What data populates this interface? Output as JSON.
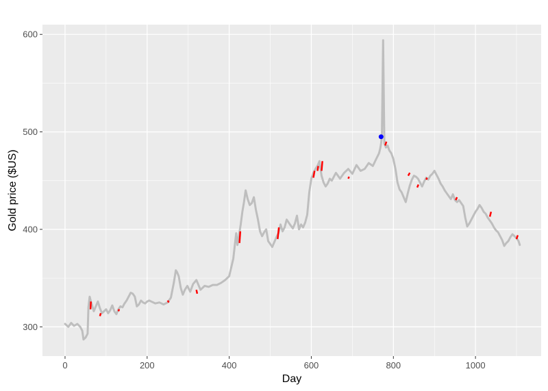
{
  "chart_data": {
    "type": "line",
    "title": "",
    "xlabel": "Day",
    "ylabel": "Gold price ($US)",
    "xlim": [
      -55,
      1160
    ],
    "ylim": [
      270,
      610
    ],
    "x_ticks": [
      0,
      200,
      400,
      600,
      800,
      1000
    ],
    "y_ticks": [
      300,
      400,
      500,
      600
    ],
    "grid": true,
    "legend": "none",
    "colors": {
      "panel": "#ebebeb",
      "grid": "#ffffff",
      "series": "#bebebe",
      "missing": "#ff0000",
      "highlight": "#0000ff"
    },
    "series": [
      {
        "x": [
          0,
          8,
          15,
          22,
          30,
          37,
          42,
          45,
          50,
          55,
          57,
          60,
          63,
          66,
          70,
          75,
          80,
          85,
          90,
          95,
          100,
          105,
          110,
          115,
          120,
          125,
          130,
          135,
          140,
          145,
          150,
          155,
          160,
          165,
          170,
          175,
          180,
          185,
          190,
          195,
          200,
          205,
          210,
          220,
          230,
          240,
          250,
          258,
          265,
          270,
          273,
          277,
          282,
          287,
          292,
          298,
          305,
          312,
          320,
          330,
          340,
          350,
          360,
          370,
          380,
          390,
          400,
          410,
          417,
          420,
          425,
          428,
          432,
          436,
          440,
          445,
          450,
          455,
          460,
          465,
          470,
          475,
          480,
          485,
          490,
          495,
          500,
          505,
          510,
          515,
          520,
          525,
          530,
          535,
          540,
          548,
          555,
          560,
          565,
          570,
          575,
          580,
          585,
          590,
          595,
          600,
          605,
          610,
          615,
          620,
          625,
          630,
          635,
          640,
          645,
          650,
          655,
          660,
          665,
          670,
          680,
          690,
          700,
          710,
          720,
          730,
          740,
          750,
          758,
          765,
          768,
          770,
          772,
          775,
          778,
          782,
          786,
          790,
          795,
          800,
          805,
          810,
          815,
          820,
          825,
          830,
          835,
          840,
          845,
          850,
          855,
          860,
          865,
          870,
          875,
          880,
          885,
          890,
          895,
          900,
          905,
          910,
          915,
          920,
          925,
          930,
          935,
          940,
          945,
          950,
          955,
          960,
          965,
          970,
          975,
          980,
          985,
          990,
          995,
          1000,
          1005,
          1010,
          1015,
          1020,
          1025,
          1030,
          1035,
          1040,
          1045,
          1050,
          1055,
          1060,
          1065,
          1070,
          1075,
          1080,
          1085,
          1090,
          1095,
          1100,
          1105,
          1108
        ],
        "y": [
          303,
          300,
          304,
          301,
          303,
          300,
          296,
          287,
          289,
          293,
          320,
          331,
          326,
          322,
          316,
          321,
          326,
          319,
          314,
          316,
          318,
          314,
          317,
          322,
          316,
          313,
          318,
          321,
          320,
          324,
          327,
          331,
          335,
          334,
          331,
          321,
          323,
          327,
          325,
          324,
          326,
          327,
          326,
          324,
          325,
          323,
          325,
          330,
          345,
          358,
          356,
          352,
          340,
          333,
          338,
          342,
          336,
          344,
          348,
          338,
          342,
          341,
          343,
          343,
          345,
          348,
          352,
          370,
          396,
          384,
          397,
          405,
          418,
          428,
          440,
          431,
          425,
          427,
          433,
          420,
          410,
          398,
          393,
          397,
          400,
          388,
          385,
          382,
          387,
          392,
          396,
          405,
          398,
          402,
          410,
          405,
          401,
          406,
          414,
          400,
          405,
          402,
          407,
          415,
          438,
          452,
          458,
          462,
          465,
          470,
          455,
          448,
          444,
          447,
          452,
          450,
          454,
          458,
          455,
          452,
          458,
          462,
          457,
          466,
          460,
          462,
          468,
          465,
          472,
          478,
          483,
          488,
          495,
          594,
          488,
          484,
          486,
          481,
          478,
          472,
          462,
          448,
          441,
          438,
          433,
          428,
          437,
          445,
          451,
          455,
          454,
          452,
          448,
          444,
          449,
          453,
          451,
          455,
          457,
          460,
          456,
          452,
          447,
          444,
          440,
          437,
          434,
          431,
          436,
          430,
          428,
          430,
          427,
          424,
          412,
          403,
          406,
          410,
          414,
          418,
          421,
          425,
          422,
          418,
          416,
          412,
          409,
          406,
          402,
          399,
          397,
          393,
          389,
          383,
          386,
          388,
          392,
          395,
          393,
          391,
          388,
          384
        ],
        "line_width": 3
      }
    ],
    "imputed_segments": [
      {
        "x": [
          62,
          63
        ],
        "y": [
          318,
          326
        ]
      },
      {
        "x": [
          85,
          87
        ],
        "y": [
          311,
          314
        ]
      },
      {
        "x": [
          130,
          132
        ],
        "y": [
          316,
          318
        ]
      },
      {
        "x": [
          250,
          253
        ],
        "y": [
          327,
          325
        ]
      },
      {
        "x": [
          320,
          322
        ],
        "y": [
          338,
          334
        ]
      },
      {
        "x": [
          425,
          427
        ],
        "y": [
          386,
          398
        ]
      },
      {
        "x": [
          518,
          521
        ],
        "y": [
          390,
          402
        ]
      },
      {
        "x": [
          605,
          608
        ],
        "y": [
          453,
          460
        ]
      },
      {
        "x": [
          615,
          617
        ],
        "y": [
          460,
          465
        ]
      },
      {
        "x": [
          625,
          627
        ],
        "y": [
          460,
          470
        ]
      },
      {
        "x": [
          690,
          692
        ],
        "y": [
          452,
          454
        ]
      },
      {
        "x": [
          780,
          783
        ],
        "y": [
          486,
          490
        ]
      },
      {
        "x": [
          836,
          840
        ],
        "y": [
          455,
          458
        ]
      },
      {
        "x": [
          858,
          861
        ],
        "y": [
          443,
          446
        ]
      },
      {
        "x": [
          880,
          882
        ],
        "y": [
          451,
          453
        ]
      },
      {
        "x": [
          952,
          955
        ],
        "y": [
          430,
          433
        ]
      },
      {
        "x": [
          1035,
          1038
        ],
        "y": [
          413,
          418
        ]
      },
      {
        "x": [
          1100,
          1103
        ],
        "y": [
          390,
          394
        ]
      }
    ],
    "highlight_point": {
      "x": 770,
      "y": 495
    }
  }
}
